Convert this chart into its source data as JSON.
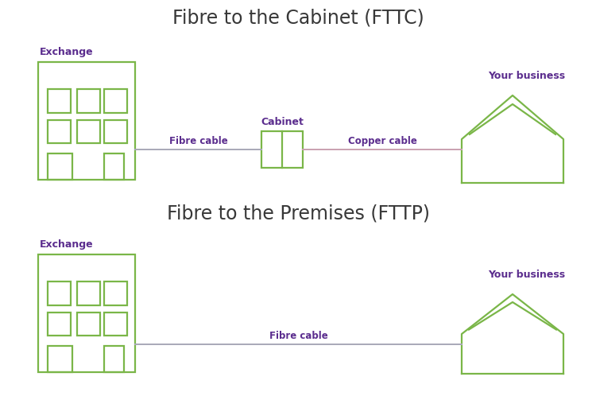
{
  "bg_color": "#ffffff",
  "green": "#7ab648",
  "purple": "#5b2d8e",
  "gray": "#a8a8b8",
  "copper_color": "#c9a0b0",
  "title_fttc": "Fibre to the Cabinet (FTTC)",
  "title_fttp": "Fibre to the Premises (FTTP)",
  "label_exchange": "Exchange",
  "label_business": "Your business",
  "label_cabinet": "Cabinet",
  "label_fibre": "Fibre cable",
  "label_copper": "Copper cable",
  "title_fontsize": 17,
  "label_fontsize": 9,
  "cable_label_fontsize": 8.5,
  "fig_w": 7.5,
  "fig_h": 4.98,
  "dpi": 100
}
